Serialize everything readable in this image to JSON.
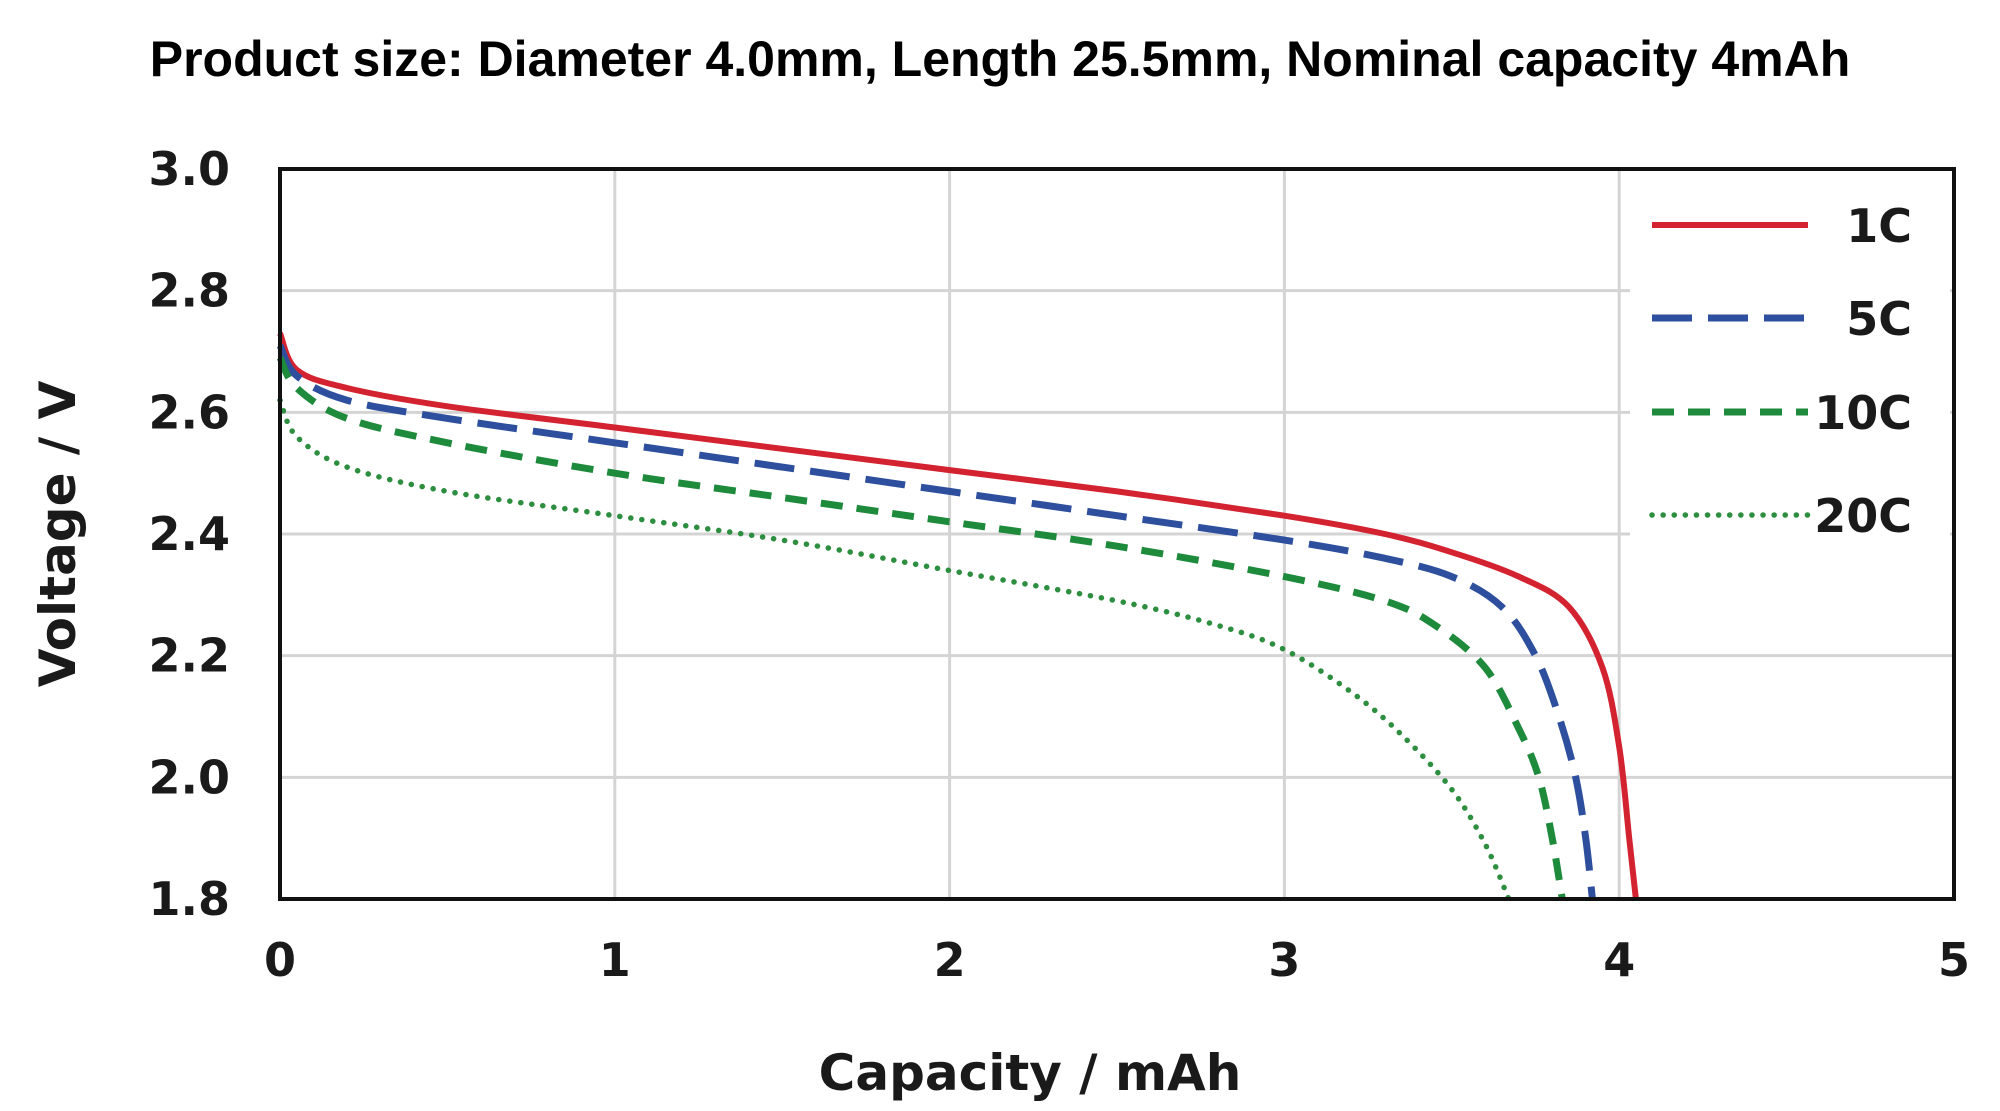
{
  "chart_data": {
    "type": "line",
    "title": "Product size: Diameter 4.0mm, Length 25.5mm, Nominal capacity 4mAh",
    "xlabel": "Capacity / mAh",
    "ylabel": "Voltage / V",
    "xlim": [
      0,
      5
    ],
    "ylim": [
      1.8,
      3.0
    ],
    "xticks": [
      "0",
      "1",
      "2",
      "3",
      "4",
      "5"
    ],
    "yticks": [
      "1.8",
      "2.0",
      "2.2",
      "2.4",
      "2.6",
      "2.8",
      "3.0"
    ],
    "grid": true,
    "legend_position": "top-right",
    "series": [
      {
        "name": "1C",
        "color": "#d42330",
        "style": "solid",
        "x": [
          0,
          0.05,
          0.2,
          0.5,
          1.0,
          1.5,
          2.0,
          2.5,
          3.0,
          3.3,
          3.5,
          3.7,
          3.85,
          3.95,
          4.0,
          4.03,
          4.05
        ],
        "y": [
          2.73,
          2.67,
          2.64,
          2.61,
          2.575,
          2.54,
          2.505,
          2.47,
          2.43,
          2.4,
          2.37,
          2.33,
          2.28,
          2.18,
          2.05,
          1.9,
          1.8
        ]
      },
      {
        "name": "5C",
        "color": "#2d4f9e",
        "style": "dashed",
        "x": [
          0,
          0.05,
          0.2,
          0.5,
          1.0,
          1.5,
          2.0,
          2.5,
          3.0,
          3.3,
          3.5,
          3.65,
          3.75,
          3.82,
          3.87,
          3.9,
          3.92
        ],
        "y": [
          2.71,
          2.66,
          2.62,
          2.59,
          2.55,
          2.51,
          2.47,
          2.43,
          2.39,
          2.36,
          2.33,
          2.28,
          2.2,
          2.1,
          2.0,
          1.9,
          1.8
        ]
      },
      {
        "name": "10C",
        "color": "#1e8a3c",
        "style": "dashed",
        "x": [
          0,
          0.05,
          0.2,
          0.5,
          1.0,
          1.5,
          2.0,
          2.5,
          3.0,
          3.3,
          3.45,
          3.6,
          3.7,
          3.76,
          3.8,
          3.83
        ],
        "y": [
          2.69,
          2.64,
          2.59,
          2.55,
          2.5,
          2.46,
          2.42,
          2.38,
          2.33,
          2.29,
          2.25,
          2.18,
          2.08,
          2.0,
          1.9,
          1.8
        ]
      },
      {
        "name": "20C",
        "color": "#2e8e40",
        "style": "dotted",
        "x": [
          0,
          0.05,
          0.2,
          0.5,
          1.0,
          1.5,
          2.0,
          2.5,
          2.8,
          3.0,
          3.2,
          3.35,
          3.5,
          3.6,
          3.67
        ],
        "y": [
          2.62,
          2.56,
          2.51,
          2.47,
          2.43,
          2.39,
          2.34,
          2.29,
          2.25,
          2.21,
          2.14,
          2.07,
          1.98,
          1.89,
          1.8
        ]
      }
    ]
  }
}
